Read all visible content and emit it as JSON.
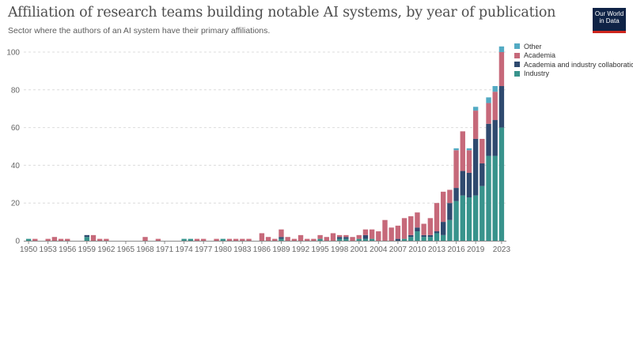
{
  "header": {
    "title": "Affiliation of research teams building notable AI systems, by year of publication",
    "subtitle": "Sector where the authors of an AI system have their primary affiliations."
  },
  "logo": {
    "line1": "Our World",
    "line2": "in Data"
  },
  "colors": {
    "Industry": "#38938c",
    "Academia and industry collaboration": "#2f4a6f",
    "Academia": "#c6697a",
    "Other": "#53aac3",
    "grid": "#dcdcdc",
    "axis": "#8a8a8a"
  },
  "chart_data": {
    "type": "bar",
    "stacked": true,
    "title": "Affiliation of research teams building notable AI systems, by year of publication",
    "subtitle": "Sector where the authors of an AI system have their primary affiliations.",
    "ylim": [
      0,
      100
    ],
    "yticks": [
      0,
      20,
      40,
      60,
      80,
      100
    ],
    "xticks": [
      1950,
      1953,
      1956,
      1959,
      1962,
      1965,
      1968,
      1971,
      1974,
      1977,
      1980,
      1983,
      1986,
      1989,
      1992,
      1995,
      1998,
      2001,
      2004,
      2007,
      2010,
      2013,
      2016,
      2019,
      2023
    ],
    "grid": true,
    "legend_position": "top-right",
    "legend_order": [
      "Other",
      "Academia",
      "Academia and industry collaboration",
      "Industry"
    ],
    "x": [
      1950,
      1951,
      1952,
      1953,
      1954,
      1955,
      1956,
      1957,
      1958,
      1959,
      1960,
      1961,
      1962,
      1963,
      1964,
      1965,
      1966,
      1967,
      1968,
      1969,
      1970,
      1971,
      1972,
      1973,
      1974,
      1975,
      1976,
      1977,
      1978,
      1979,
      1980,
      1981,
      1982,
      1983,
      1984,
      1985,
      1986,
      1987,
      1988,
      1989,
      1990,
      1991,
      1992,
      1993,
      1994,
      1995,
      1996,
      1997,
      1998,
      1999,
      2000,
      2001,
      2002,
      2003,
      2004,
      2005,
      2006,
      2007,
      2008,
      2009,
      2010,
      2011,
      2012,
      2013,
      2014,
      2015,
      2016,
      2017,
      2018,
      2019,
      2020,
      2021,
      2022,
      2023
    ],
    "series": [
      {
        "name": "Industry",
        "values": [
          1,
          0,
          0,
          0,
          0,
          0,
          0,
          0,
          0,
          2,
          0,
          0,
          0,
          0,
          0,
          0,
          0,
          0,
          0,
          0,
          0,
          0,
          0,
          0,
          1,
          1,
          0,
          0,
          0,
          0,
          1,
          0,
          0,
          0,
          0,
          0,
          0,
          0,
          0,
          1,
          0,
          0,
          0,
          0,
          0,
          1,
          0,
          0,
          1,
          1,
          0,
          1,
          1,
          1,
          0,
          0,
          0,
          0,
          1,
          2,
          5,
          2,
          2,
          4,
          3,
          11,
          21,
          24,
          23,
          24,
          29,
          45,
          45,
          60
        ]
      },
      {
        "name": "Academia and industry collaboration",
        "values": [
          0,
          0,
          0,
          0,
          0,
          0,
          0,
          0,
          0,
          1,
          0,
          0,
          0,
          0,
          0,
          0,
          0,
          0,
          0,
          0,
          0,
          0,
          0,
          0,
          0,
          0,
          0,
          0,
          0,
          0,
          0,
          0,
          0,
          0,
          0,
          0,
          0,
          0,
          0,
          1,
          0,
          0,
          0,
          0,
          0,
          0,
          0,
          0,
          1,
          1,
          0,
          0,
          2,
          0,
          0,
          0,
          0,
          1,
          0,
          1,
          2,
          1,
          1,
          1,
          7,
          9,
          7,
          13,
          13,
          30,
          12,
          17,
          19,
          22
        ]
      },
      {
        "name": "Academia",
        "values": [
          0,
          1,
          0,
          1,
          2,
          1,
          1,
          0,
          0,
          0,
          3,
          1,
          1,
          0,
          0,
          0,
          0,
          0,
          2,
          0,
          1,
          0,
          0,
          0,
          0,
          0,
          1,
          1,
          0,
          1,
          0,
          1,
          1,
          1,
          1,
          0,
          4,
          2,
          1,
          4,
          2,
          1,
          3,
          1,
          1,
          2,
          2,
          4,
          1,
          1,
          2,
          2,
          3,
          5,
          5,
          11,
          7,
          7,
          11,
          10,
          8,
          6,
          9,
          15,
          16,
          7,
          20,
          21,
          12,
          15,
          13,
          11,
          15,
          18
        ]
      },
      {
        "name": "Other",
        "values": [
          0,
          0,
          0,
          0,
          0,
          0,
          0,
          0,
          0,
          0,
          0,
          0,
          0,
          0,
          0,
          0,
          0,
          0,
          0,
          0,
          0,
          0,
          0,
          0,
          0,
          0,
          0,
          0,
          0,
          0,
          0,
          0,
          0,
          0,
          0,
          0,
          0,
          0,
          0,
          0,
          0,
          0,
          0,
          0,
          0,
          0,
          0,
          0,
          0,
          0,
          0,
          0,
          0,
          0,
          0,
          0,
          0,
          0,
          0,
          0,
          0,
          0,
          0,
          0,
          0,
          0,
          1,
          0,
          1,
          2,
          0,
          3,
          3,
          3
        ]
      }
    ]
  }
}
